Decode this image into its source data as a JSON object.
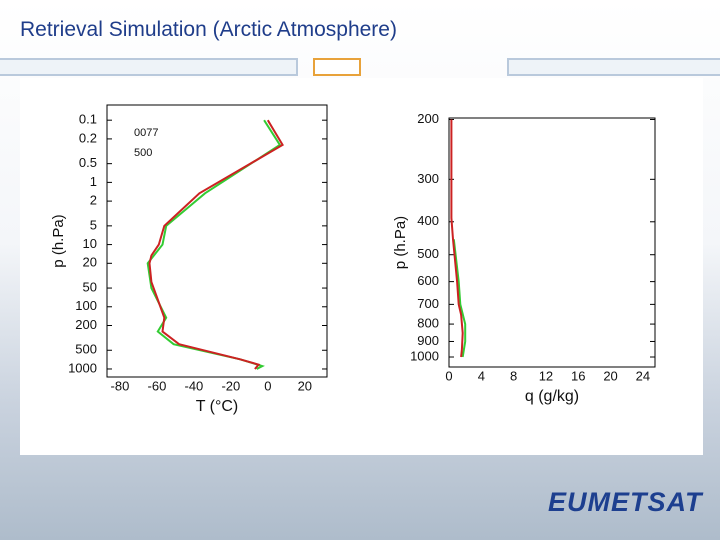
{
  "title": "Retrieval Simulation (Arctic Atmosphere)",
  "logo": "EUMETSAT",
  "chart_data": [
    {
      "type": "line",
      "xlabel": "T (°C)",
      "ylabel": "p (h.Pa)",
      "yscale": "log",
      "y_inverted": true,
      "annotations": [
        "0077",
        "500"
      ],
      "xlim": [
        -87,
        32
      ],
      "xticks": [
        -80,
        -60,
        -40,
        -20,
        0,
        20
      ],
      "ylim": [
        0.057,
        1346
      ],
      "yticks": [
        0.1,
        0.2,
        0.5,
        1,
        2,
        5,
        10,
        20,
        50,
        100,
        200,
        500,
        1000
      ],
      "series": [
        {
          "color": "#33cc33",
          "values": [
            -2,
            6.5,
            -34,
            -55,
            -57,
            -65,
            -63,
            -55,
            -59.5,
            -51,
            -15,
            -3,
            -6
          ],
          "pressure": [
            0.1,
            0.25,
            1.5,
            5,
            10,
            20,
            50,
            150,
            250,
            400,
            700,
            900,
            1000
          ]
        },
        {
          "color": "#cc2222",
          "values": [
            0,
            8,
            -37,
            -48,
            -56,
            -59,
            -63,
            -64,
            -63,
            -60,
            -56,
            -57,
            -48,
            -15,
            -5,
            -7
          ],
          "pressure": [
            0.1,
            0.25,
            1.5,
            3,
            5,
            10,
            15,
            20,
            40,
            70,
            150,
            250,
            400,
            700,
            850,
            1000
          ]
        }
      ]
    },
    {
      "type": "line",
      "xlabel": "q (g/kg)",
      "ylabel": "p (h.Pa)",
      "yscale": "log",
      "y_inverted": true,
      "xlim": [
        0,
        25.5
      ],
      "xticks": [
        0,
        4,
        8,
        12,
        16,
        20,
        24
      ],
      "ylim": [
        198,
        1070
      ],
      "yticks": [
        200,
        300,
        400,
        500,
        600,
        700,
        800,
        900,
        1000
      ],
      "series": [
        {
          "color": "#33cc33",
          "values": [
            0.6,
            1.2,
            1.4,
            2,
            2,
            1.7
          ],
          "pressure": [
            450,
            600,
            700,
            800,
            900,
            1000
          ]
        },
        {
          "color": "#cc2222",
          "values": [
            0.3,
            0.3,
            0.5,
            1,
            1.2,
            1.5,
            1.7,
            1.6,
            1.5
          ],
          "pressure": [
            200,
            390,
            450,
            600,
            700,
            750,
            850,
            950,
            1000
          ]
        }
      ]
    }
  ]
}
